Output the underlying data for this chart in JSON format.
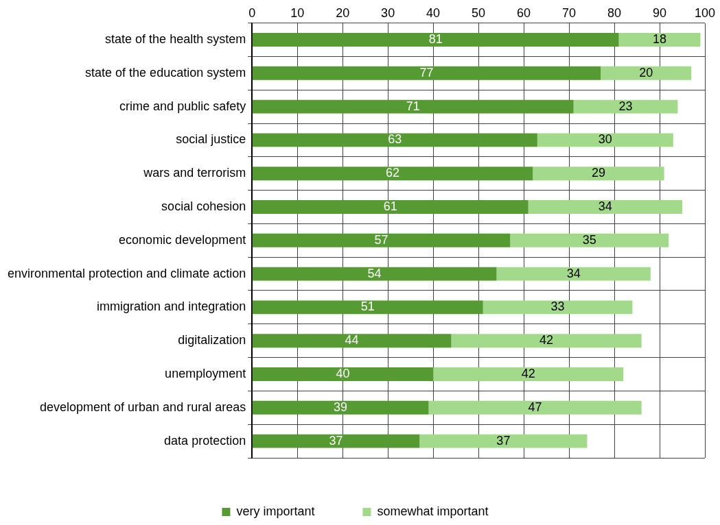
{
  "chart_data": {
    "type": "bar",
    "orientation": "horizontal",
    "stacked": true,
    "categories": [
      "state of the health system",
      "state of the education system",
      "crime and public safety",
      "social justice",
      "wars and terrorism",
      "social cohesion",
      "economic development",
      "environmental protection and climate action",
      "immigration and integration",
      "digitalization",
      "unemployment",
      "development of urban and rural areas",
      "data protection"
    ],
    "series": [
      {
        "name": "very important",
        "color": "#559a33",
        "values": [
          81,
          77,
          71,
          63,
          62,
          61,
          57,
          54,
          51,
          44,
          40,
          39,
          37
        ]
      },
      {
        "name": "somewhat important",
        "color": "#a2d98a",
        "values": [
          18,
          20,
          23,
          30,
          29,
          34,
          35,
          34,
          33,
          42,
          42,
          47,
          37
        ]
      }
    ],
    "xlim": [
      0,
      100
    ],
    "xticks": [
      0,
      10,
      20,
      30,
      40,
      50,
      60,
      70,
      80,
      90,
      100
    ],
    "grid": true,
    "legend": "bottom",
    "data_labels": true
  }
}
